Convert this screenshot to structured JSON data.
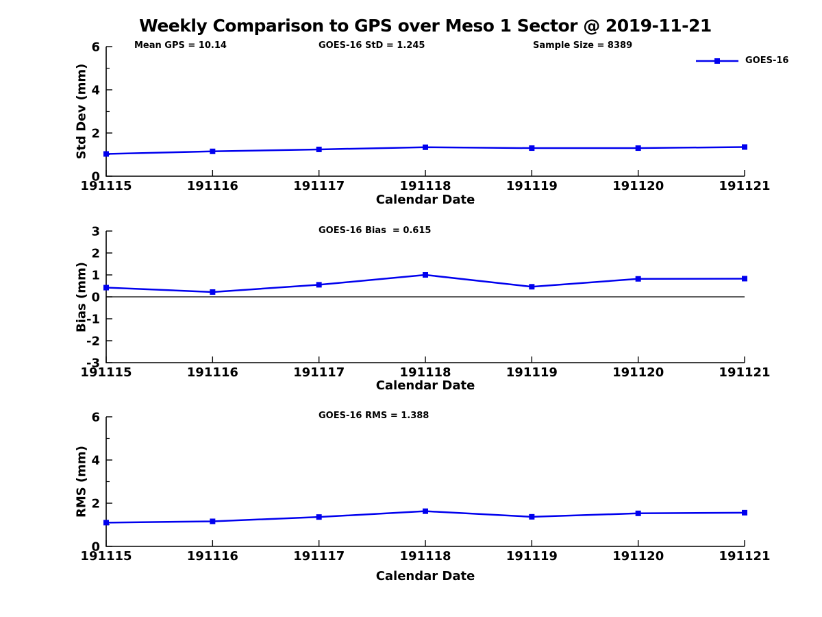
{
  "figure": {
    "title": "Weekly Comparison to GPS over Meso 1 Sector @ 2019-11-21",
    "background": "#ffffff"
  },
  "colors": {
    "line": "#0000ee",
    "axis": "#000000",
    "text": "#000000",
    "zero_line": "#000000"
  },
  "legend": {
    "label": "GOES-16",
    "position": "upper right",
    "marker": "filled-square"
  },
  "chart_data": [
    {
      "type": "line",
      "title": "",
      "ylabel": "Std Dev (mm)",
      "xlabel": "Calendar Date",
      "categories": [
        "191115",
        "191116",
        "191117",
        "191118",
        "191119",
        "191120",
        "191121"
      ],
      "series": [
        {
          "name": "GOES-16",
          "values": [
            1.03,
            1.15,
            1.24,
            1.34,
            1.3,
            1.3,
            1.35
          ]
        }
      ],
      "ylim": [
        0,
        6
      ],
      "yticks": [
        0,
        2,
        4,
        6
      ],
      "yticks_minor": [
        1,
        3,
        5
      ],
      "grid": false,
      "zero_line": false,
      "annotations": [
        "Mean GPS = 10.14",
        "GOES-16 StD = 1.245",
        "Sample Size = 8389"
      ]
    },
    {
      "type": "line",
      "title": "",
      "ylabel": "Bias (mm)",
      "xlabel": "Calendar Date",
      "categories": [
        "191115",
        "191116",
        "191117",
        "191118",
        "191119",
        "191120",
        "191121"
      ],
      "series": [
        {
          "name": "GOES-16",
          "values": [
            0.42,
            0.22,
            0.55,
            1.0,
            0.46,
            0.82,
            0.83
          ]
        }
      ],
      "ylim": [
        -3,
        3
      ],
      "yticks": [
        -3,
        -2,
        -1,
        0,
        1,
        2,
        3
      ],
      "yticks_minor": [],
      "grid": false,
      "zero_line": true,
      "annotations": [
        "GOES-16 Bias  = 0.615"
      ]
    },
    {
      "type": "line",
      "title": "",
      "ylabel": "RMS (mm)",
      "xlabel": "Calendar Date",
      "categories": [
        "191115",
        "191116",
        "191117",
        "191118",
        "191119",
        "191120",
        "191121"
      ],
      "series": [
        {
          "name": "GOES-16",
          "values": [
            1.1,
            1.16,
            1.36,
            1.63,
            1.37,
            1.53,
            1.56
          ]
        }
      ],
      "ylim": [
        0,
        6
      ],
      "yticks": [
        0,
        2,
        4,
        6
      ],
      "yticks_minor": [
        1,
        3,
        5
      ],
      "grid": false,
      "zero_line": false,
      "annotations": [
        "GOES-16 RMS = 1.388"
      ]
    }
  ]
}
